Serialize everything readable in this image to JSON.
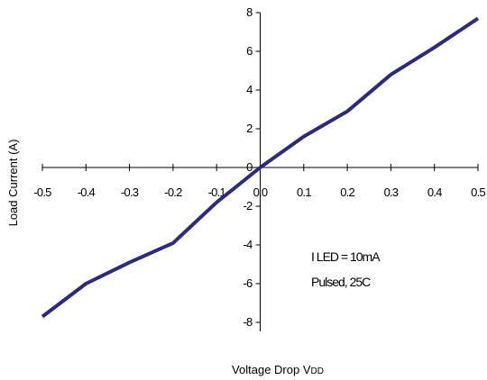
{
  "chart_data": {
    "type": "line",
    "title": "",
    "xlabel": "Voltage Drop V",
    "xlabel_subscript": "DD",
    "ylabel": "Load Current (A)",
    "xlim": [
      -0.5,
      0.5
    ],
    "ylim": [
      -8,
      8
    ],
    "x_ticks": [
      "-0.5",
      "-0.4",
      "-0.3",
      "-0.2",
      "-0.1",
      "0.0",
      "0.1",
      "0.2",
      "0.3",
      "0.4",
      "0.5"
    ],
    "y_ticks": [
      "8",
      "6",
      "4",
      "2",
      "0",
      "-2",
      "-4",
      "-6",
      "-8"
    ],
    "grid": false,
    "series": [
      {
        "color": "#2a2a7e",
        "x": [
          -0.5,
          -0.4,
          -0.3,
          -0.2,
          -0.1,
          0.0,
          0.1,
          0.2,
          0.3,
          0.4,
          0.5
        ],
        "y": [
          -7.7,
          -6.0,
          -4.9,
          -3.9,
          -1.8,
          0.0,
          1.6,
          2.9,
          4.8,
          6.2,
          7.7
        ]
      }
    ],
    "annotations": [
      "I LED = 10mA",
      "Pulsed, 25C"
    ]
  }
}
